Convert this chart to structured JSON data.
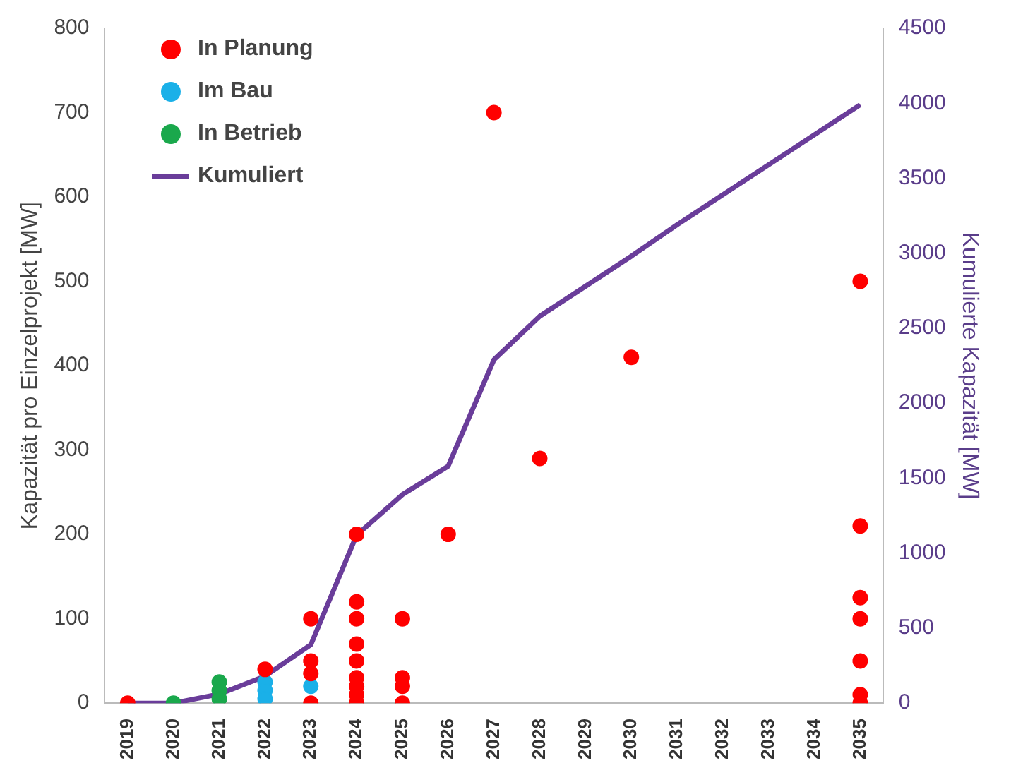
{
  "chart_data": {
    "type": "scatter",
    "ylabel": "Kapazität pro Einzelprojekt [MW]",
    "y2label": "Kumulierte Kapazität [MW]",
    "xlim": [
      2018.5,
      2035.5
    ],
    "xticks": [
      2019,
      2020,
      2021,
      2022,
      2023,
      2024,
      2025,
      2026,
      2027,
      2028,
      2029,
      2030,
      2031,
      2032,
      2033,
      2034,
      2035
    ],
    "ylim": [
      0,
      800
    ],
    "yticks": [
      0,
      100,
      200,
      300,
      400,
      500,
      600,
      700,
      800
    ],
    "y2lim": [
      0,
      4500
    ],
    "y2ticks": [
      0,
      500,
      1000,
      1500,
      2000,
      2500,
      3000,
      3500,
      4000,
      4500
    ],
    "grid": false,
    "legend": "top left",
    "marker": "circle",
    "series": [
      {
        "name": "In Planung",
        "color": "#ff0000",
        "x": [
          2019,
          2022,
          2023,
          2023,
          2023,
          2023,
          2024,
          2024,
          2024,
          2024,
          2024,
          2024,
          2024,
          2024,
          2024,
          2025,
          2025,
          2025,
          2025,
          2026,
          2027,
          2028,
          2030,
          2035,
          2035,
          2035,
          2035,
          2035,
          2035,
          2035
        ],
        "values": [
          0,
          40,
          100,
          50,
          35,
          0,
          200,
          120,
          100,
          70,
          50,
          30,
          20,
          10,
          0,
          100,
          30,
          20,
          0,
          200,
          700,
          290,
          410,
          500,
          210,
          125,
          100,
          50,
          10,
          0
        ]
      },
      {
        "name": "Im Bau",
        "color": "#1ab0e8",
        "x": [
          2022,
          2022,
          2022,
          2023
        ],
        "values": [
          25,
          15,
          5,
          20
        ]
      },
      {
        "name": "In Betrieb",
        "color": "#1aa84c",
        "x": [
          2020,
          2021,
          2021,
          2021
        ],
        "values": [
          0,
          25,
          15,
          5
        ]
      },
      {
        "name": "Kumuliert",
        "color": "#6a3d9a",
        "type": "line",
        "axis": "y2",
        "marker": "none",
        "line_style": "solid",
        "x": [
          2019,
          2020,
          2021,
          2022,
          2023,
          2024,
          2025,
          2026,
          2027,
          2028,
          2029,
          2030,
          2031,
          2032,
          2033,
          2034,
          2035
        ],
        "values": [
          0,
          0,
          60,
          180,
          390,
          1120,
          1390,
          1580,
          2290,
          2580,
          2780,
          2980,
          3190,
          3390,
          3590,
          3790,
          3990
        ]
      }
    ]
  }
}
